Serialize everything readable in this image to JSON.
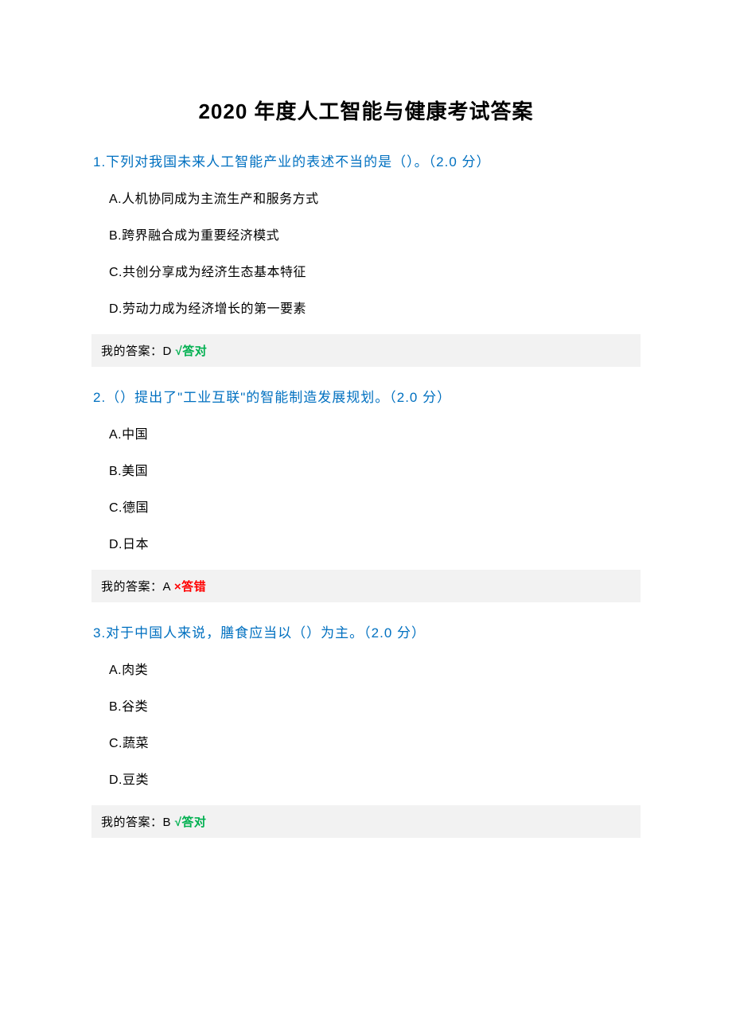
{
  "title": "2020 年度人工智能与健康考试答案",
  "answer_prefix": "我的答案：",
  "questions": [
    {
      "number": "1",
      "text": "1.下列对我国未来人工智能产业的表述不当的是（）。（2.0 分）",
      "options": [
        "A.人机协同成为主流生产和服务方式",
        "B.跨界融合成为重要经济模式",
        "C.共创分享成为经济生态基本特征",
        "D.劳动力成为经济增长的第一要素"
      ],
      "my_answer": "D",
      "result_text": "√答对",
      "result_class": "correct"
    },
    {
      "number": "2",
      "text": "2.（）提出了\"工业互联\"的智能制造发展规划。（2.0 分）",
      "options": [
        "A.中国",
        "B.美国",
        "C.德国",
        "D.日本"
      ],
      "my_answer": "A",
      "result_text": "×答错",
      "result_class": "wrong"
    },
    {
      "number": "3",
      "text": "3.对于中国人来说，膳食应当以（）为主。（2.0 分）",
      "options": [
        "A.肉类",
        "B.谷类",
        "C.蔬菜",
        "D.豆类"
      ],
      "my_answer": "B",
      "result_text": "√答对",
      "result_class": "correct"
    }
  ],
  "colors": {
    "question_color": "#0070c0",
    "correct_color": "#00b050",
    "wrong_color": "#ff0000",
    "answer_bg": "#f2f2f2",
    "text_color": "#000000",
    "background": "#ffffff"
  }
}
